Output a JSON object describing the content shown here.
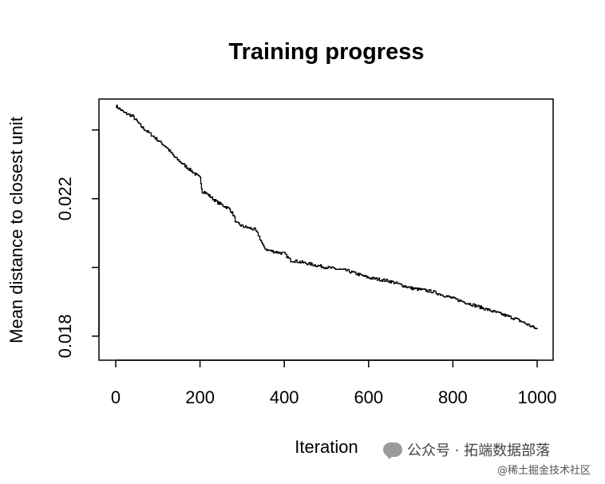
{
  "chart_data": {
    "type": "line",
    "title": "Training progress",
    "xlabel": "Iteration",
    "ylabel": "Mean distance to closest unit",
    "xlim": [
      0,
      1000
    ],
    "ylim": [
      0.0173,
      0.0249
    ],
    "xticks": [
      0,
      200,
      400,
      600,
      800,
      1000
    ],
    "xtick_labels": [
      "0",
      "200",
      "400",
      "600",
      "800",
      "1000"
    ],
    "yticks": [
      0.018,
      0.02,
      0.022,
      0.024
    ],
    "ytick_labels": [
      "0.018",
      "",
      "0.022",
      ""
    ],
    "grid": false,
    "series": [
      {
        "x": [
          0,
          20,
          40,
          60,
          80,
          100,
          120,
          140,
          160,
          180,
          200,
          205,
          210,
          240,
          270,
          280,
          285,
          300,
          330,
          340,
          350,
          360,
          400,
          415,
          420,
          460,
          500,
          550,
          600,
          650,
          700,
          750,
          800,
          850,
          900,
          950,
          1000
        ],
        "y": [
          0.0247,
          0.0245,
          0.0244,
          0.0241,
          0.0239,
          0.0237,
          0.0235,
          0.0232,
          0.023,
          0.0228,
          0.0226,
          0.0222,
          0.0222,
          0.0219,
          0.0217,
          0.0215,
          0.0213,
          0.0212,
          0.0211,
          0.0209,
          0.0206,
          0.0205,
          0.0204,
          0.0202,
          0.0202,
          0.0201,
          0.02,
          0.0199,
          0.0197,
          0.0196,
          0.0194,
          0.0193,
          0.0191,
          0.0189,
          0.0187,
          0.0185,
          0.0182
        ]
      }
    ]
  },
  "watermark": {
    "line1": "公众号 · 拓端数据部落",
    "line2": "@稀土掘金技术社区"
  },
  "icons": {
    "watermark_icon": "wechat-icon"
  }
}
